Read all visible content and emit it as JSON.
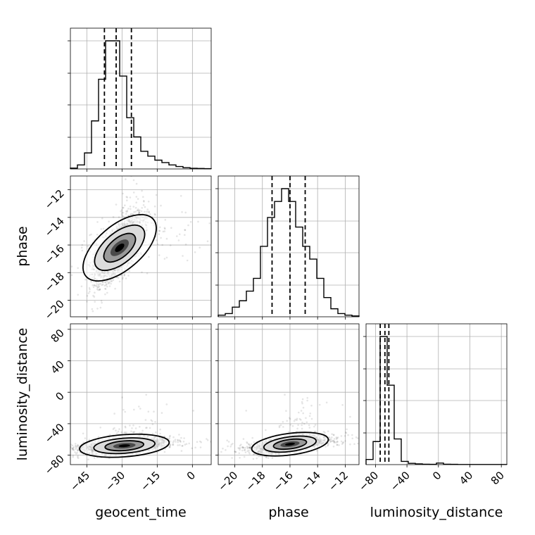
{
  "chart_data": {
    "type": "corner",
    "parameters": [
      "geocent_time",
      "phase",
      "luminosity_distance"
    ],
    "ranges": {
      "geocent_time": [
        -52,
        8
      ],
      "phase": [
        -21.2,
        -11.0
      ],
      "luminosity_distance": [
        -92,
        87
      ]
    },
    "ticks": {
      "geocent_time": [
        -45,
        -30,
        -15,
        0
      ],
      "phase": [
        -20,
        -18,
        -16,
        -14,
        -12
      ],
      "luminosity_distance": [
        -80,
        -40,
        0,
        40,
        80
      ]
    },
    "tick_labels": {
      "geocent_time": [
        "−45",
        "−30",
        "−15",
        "0"
      ],
      "phase": [
        "−20",
        "−18",
        "−16",
        "−14",
        "−12"
      ],
      "luminosity_distance": [
        "−80",
        "−40",
        "0",
        "40",
        "80"
      ]
    },
    "quantiles": {
      "geocent_time": [
        -37.5,
        -32.5,
        -26
      ],
      "phase": [
        -17.3,
        -16.0,
        -14.9
      ],
      "luminosity_distance": [
        -74,
        -68,
        -63
      ]
    },
    "histograms": {
      "geocent_time": {
        "edges": [
          -52,
          -49,
          -46,
          -43,
          -40,
          -37,
          -34,
          -31,
          -28,
          -25,
          -22,
          -19,
          -16,
          -13,
          -10,
          -7,
          -4,
          -1,
          2,
          5,
          8
        ],
        "counts": [
          0.5,
          2.5,
          10,
          30,
          56,
          80,
          80,
          58,
          32,
          20,
          11,
          8,
          5.5,
          4,
          2.5,
          1.5,
          0.8,
          0.4,
          0.3,
          0.2
        ]
      },
      "phase": {
        "edges": [
          -21.2,
          -20.69,
          -20.18,
          -19.67,
          -19.16,
          -18.65,
          -18.14,
          -17.63,
          -17.12,
          -16.61,
          -16.1,
          -15.59,
          -15.08,
          -14.57,
          -14.06,
          -13.55,
          -13.04,
          -12.53,
          -12.02,
          -11.51,
          -11.0
        ],
        "counts": [
          1,
          2,
          6,
          10,
          16,
          24,
          44,
          62,
          72,
          80,
          72,
          56,
          44,
          36,
          24,
          12,
          5,
          2,
          1,
          0.5
        ]
      },
      "luminosity_distance": {
        "edges": [
          -92,
          -83.05,
          -74.1,
          -65.15,
          -56.2,
          -47.25,
          -38.3,
          -29.35,
          -20.4,
          -11.45,
          -2.5,
          6.45,
          15.4,
          24.35,
          33.3,
          42.25,
          51.2,
          60.15,
          69.1,
          78.05,
          87
        ],
        "counts": [
          4,
          18,
          100,
          62,
          20,
          2.5,
          1,
          0.6,
          0.3,
          0.2,
          1.2,
          0.3,
          0.2,
          0.1,
          0.1,
          0.1,
          0.1,
          0.1,
          0.1,
          0.1
        ]
      }
    },
    "joint": {
      "geocent_time_phase": {
        "mean": [
          -31,
          -16.2
        ],
        "sd": [
          5.2,
          1.25
        ],
        "corr": 0.7,
        "tail": [
          0.35,
          0.3
        ]
      },
      "geocent_time_luminosity_distance": {
        "mean": [
          -29,
          -68
        ],
        "sd": [
          9,
          5
        ],
        "corr": 0.45,
        "tail": [
          0.25,
          0.5
        ]
      },
      "phase_luminosity_distance": {
        "mean": [
          -16,
          -66
        ],
        "sd": [
          1.3,
          5.5
        ],
        "corr": 0.6,
        "tail": [
          0.3,
          0.5
        ]
      }
    },
    "scatter_points": 2200,
    "grid": true
  }
}
